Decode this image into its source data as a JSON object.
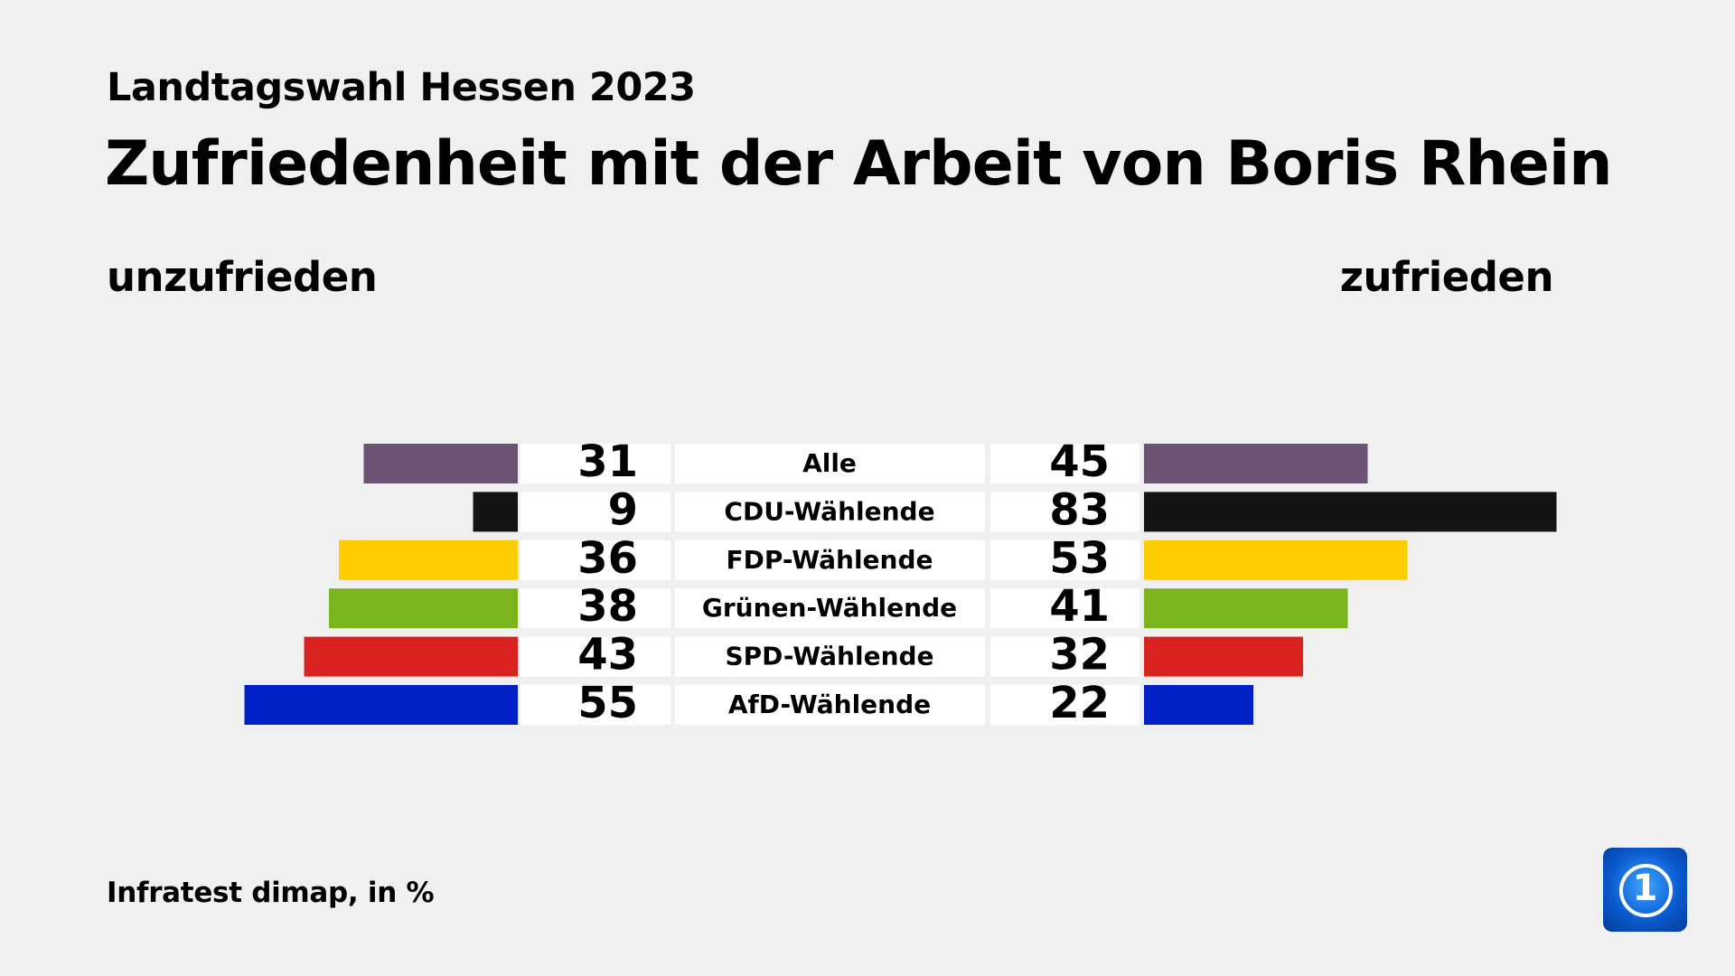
{
  "header": {
    "subtitle": "Landtagswahl Hessen 2023",
    "title": "Zufriedenheit mit der Arbeit von Boris Rhein"
  },
  "chart_data": {
    "type": "bar",
    "orientation": "horizontal-diverging",
    "categories": [
      "Alle",
      "CDU-Wählende",
      "FDP-Wählende",
      "Grünen-Wählende",
      "SPD-Wählende",
      "AfD-Wählende"
    ],
    "series": [
      {
        "name": "unzufrieden",
        "side": "left",
        "values": [
          31,
          9,
          36,
          38,
          43,
          55
        ]
      },
      {
        "name": "zufrieden",
        "side": "right",
        "values": [
          45,
          83,
          53,
          41,
          32,
          22
        ]
      }
    ],
    "colors": [
      "#6b5473",
      "#141414",
      "#ffcc00",
      "#7ab51d",
      "#d9221f",
      "#0020c6"
    ],
    "unit": "%",
    "grid": false
  },
  "footer": {
    "source": "Infratest dimap, in %"
  },
  "logo": {
    "text": "1",
    "icon": "ard-tagesschau-logo"
  }
}
